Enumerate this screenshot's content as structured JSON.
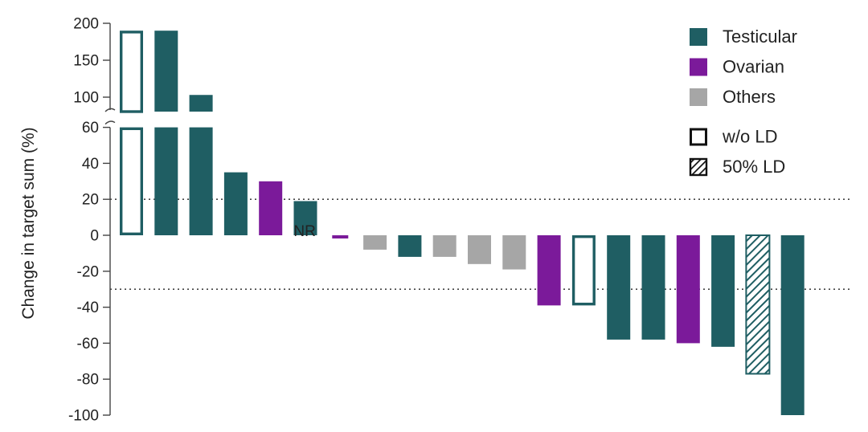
{
  "chart_data": {
    "type": "bar",
    "title": "",
    "xlabel": "",
    "ylabel": "Change in target sum (%)",
    "ylim": [
      -100,
      200
    ],
    "axis_break": {
      "lower_max": 60,
      "upper_min": 100
    },
    "yticks_lower": [
      -100,
      -80,
      -60,
      -40,
      -20,
      0,
      20,
      40,
      60
    ],
    "yticks_upper": [
      100,
      150,
      200
    ],
    "reference_lines": [
      20,
      -30
    ],
    "colors": {
      "Testicular": "#1f5e63",
      "Ovarian": "#7b1a9a",
      "Others": "#a6a6a6"
    },
    "bars": [
      {
        "value": 190,
        "type": "Testicular",
        "style": "wo_ld"
      },
      {
        "value": 190,
        "type": "Testicular",
        "style": "solid"
      },
      {
        "value": 103,
        "type": "Testicular",
        "style": "solid"
      },
      {
        "value": 35,
        "type": "Testicular",
        "style": "solid"
      },
      {
        "value": 30,
        "type": "Ovarian",
        "style": "solid"
      },
      {
        "value": 19,
        "type": "Testicular",
        "style": "solid"
      },
      {
        "value": -1,
        "type": "Ovarian",
        "style": "solid",
        "label": "NR"
      },
      {
        "value": -8,
        "type": "Others",
        "style": "solid"
      },
      {
        "value": -12,
        "type": "Testicular",
        "style": "solid"
      },
      {
        "value": -12,
        "type": "Others",
        "style": "solid"
      },
      {
        "value": -16,
        "type": "Others",
        "style": "solid"
      },
      {
        "value": -19,
        "type": "Others",
        "style": "solid"
      },
      {
        "value": -39,
        "type": "Ovarian",
        "style": "solid"
      },
      {
        "value": -39,
        "type": "Testicular",
        "style": "wo_ld"
      },
      {
        "value": -58,
        "type": "Testicular",
        "style": "solid"
      },
      {
        "value": -58,
        "type": "Testicular",
        "style": "solid"
      },
      {
        "value": -60,
        "type": "Ovarian",
        "style": "solid"
      },
      {
        "value": -62,
        "type": "Testicular",
        "style": "solid"
      },
      {
        "value": -77,
        "type": "Testicular",
        "style": "ld50"
      },
      {
        "value": -100,
        "type": "Testicular",
        "style": "solid"
      }
    ],
    "legend": {
      "placement": "top-right",
      "entries": [
        {
          "label": "Testicular",
          "kind": "color",
          "key": "Testicular"
        },
        {
          "label": "Ovarian",
          "kind": "color",
          "key": "Ovarian"
        },
        {
          "label": "Others",
          "kind": "color",
          "key": "Others"
        },
        {
          "label": "w/o LD",
          "kind": "style",
          "key": "wo_ld"
        },
        {
          "label": "50% LD",
          "kind": "style",
          "key": "ld50"
        }
      ]
    }
  }
}
